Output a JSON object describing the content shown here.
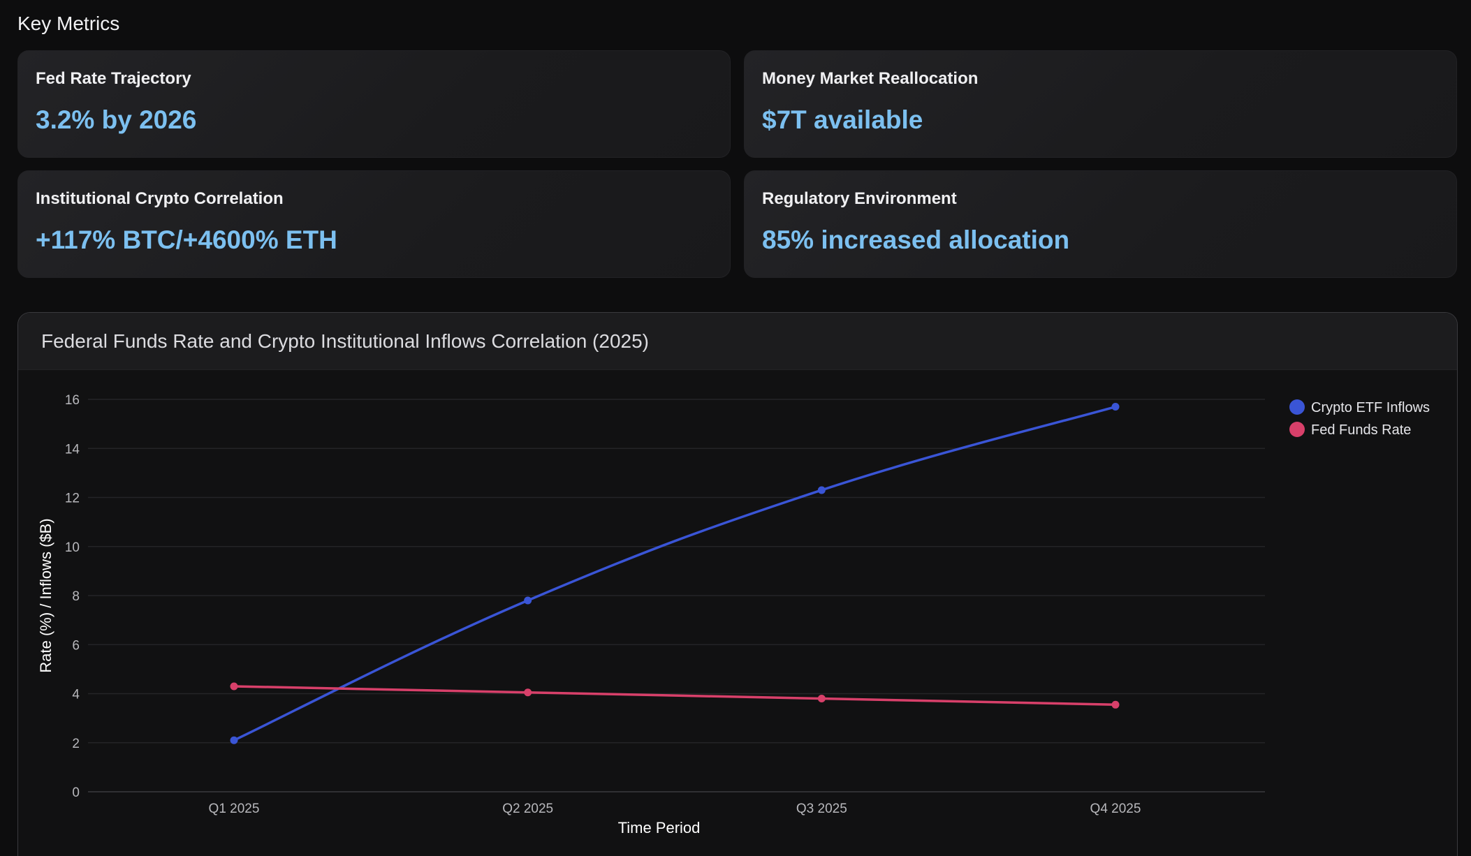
{
  "section_title": "Key Metrics",
  "metrics": [
    {
      "label": "Fed Rate Trajectory",
      "value": "3.2% by 2026"
    },
    {
      "label": "Money Market Reallocation",
      "value": "$7T available"
    },
    {
      "label": "Institutional Crypto Correlation",
      "value": "+117% BTC/+4600% ETH"
    },
    {
      "label": "Regulatory Environment",
      "value": "85% increased allocation"
    }
  ],
  "colors": {
    "accent": "#7cc0f0",
    "series_inflows": "#3a55d6",
    "series_fed": "#d8406a"
  },
  "chart_data": {
    "type": "line",
    "title": "Federal Funds Rate and Crypto Institutional Inflows Correlation (2025)",
    "xlabel": "Time Period",
    "ylabel": "Rate (%) / Inflows ($B)",
    "categories": [
      "Q1 2025",
      "Q2 2025",
      "Q3 2025",
      "Q4 2025"
    ],
    "ylim": [
      0,
      16
    ],
    "yticks": [
      0,
      2,
      4,
      6,
      8,
      10,
      12,
      14,
      16
    ],
    "grid": true,
    "legend_position": "top-right",
    "series": [
      {
        "name": "Crypto ETF Inflows",
        "values": [
          2.1,
          7.8,
          12.3,
          15.7
        ],
        "color": "#3a55d6"
      },
      {
        "name": "Fed Funds Rate",
        "values": [
          4.3,
          4.05,
          3.8,
          3.55
        ],
        "color": "#d8406a"
      }
    ]
  }
}
